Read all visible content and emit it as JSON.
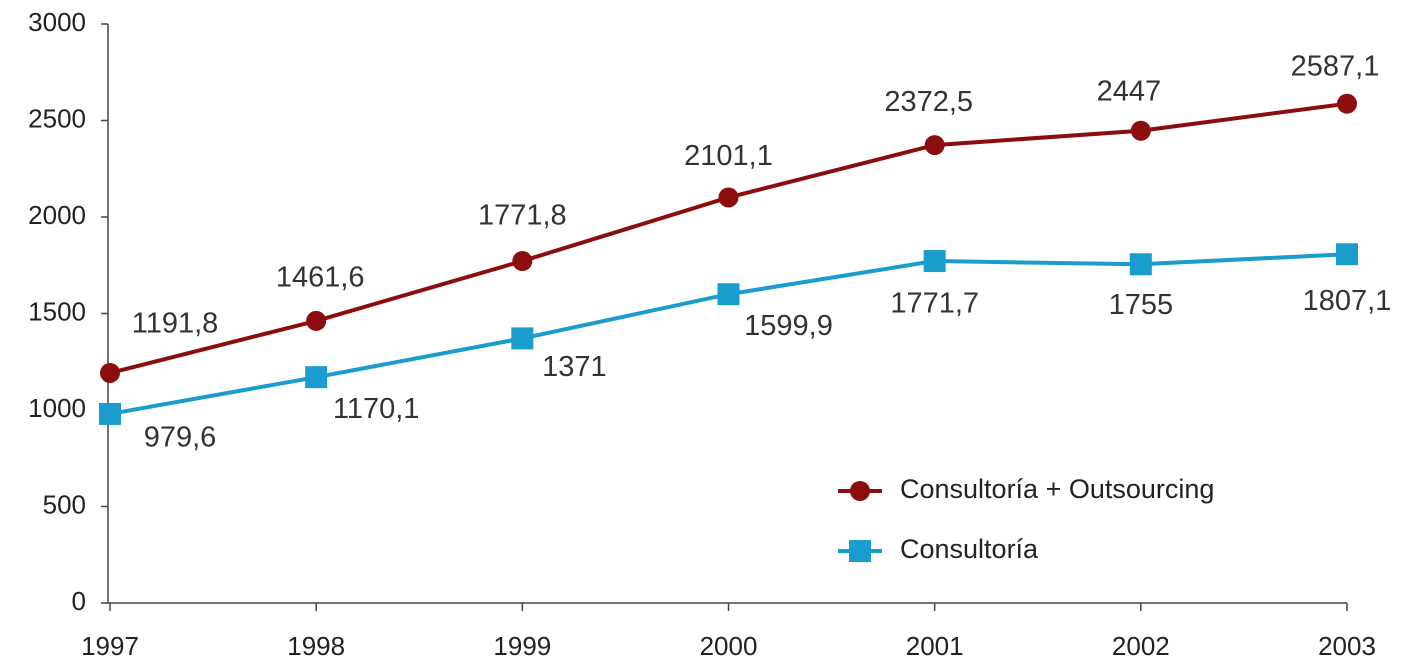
{
  "chart_data": {
    "type": "line",
    "categories": [
      "1997",
      "1998",
      "1999",
      "2000",
      "2001",
      "2002",
      "2003"
    ],
    "series": [
      {
        "name": "Consultoría + Outsourcing",
        "color": "#8b0d0d",
        "marker": "circle",
        "values": [
          1191.8,
          1461.6,
          1771.8,
          2101.1,
          2372.5,
          2447,
          2587.1
        ],
        "value_labels": [
          "1191,8",
          "1461,6",
          "1771,8",
          "2101,1",
          "2372,5",
          "2447",
          "2587,1"
        ]
      },
      {
        "name": "Consultoría",
        "color": "#1a9ccc",
        "marker": "square",
        "values": [
          979.6,
          1170.1,
          1371,
          1599.9,
          1771.7,
          1755,
          1807.1
        ],
        "value_labels": [
          "979,6",
          "1170,1",
          "1371",
          "1599,9",
          "1771,7",
          "1755",
          "1807,1"
        ]
      }
    ],
    "ylim": [
      0,
      3000
    ],
    "yticks": [
      0,
      500,
      1000,
      1500,
      2000,
      2500,
      3000
    ],
    "grid": false
  }
}
